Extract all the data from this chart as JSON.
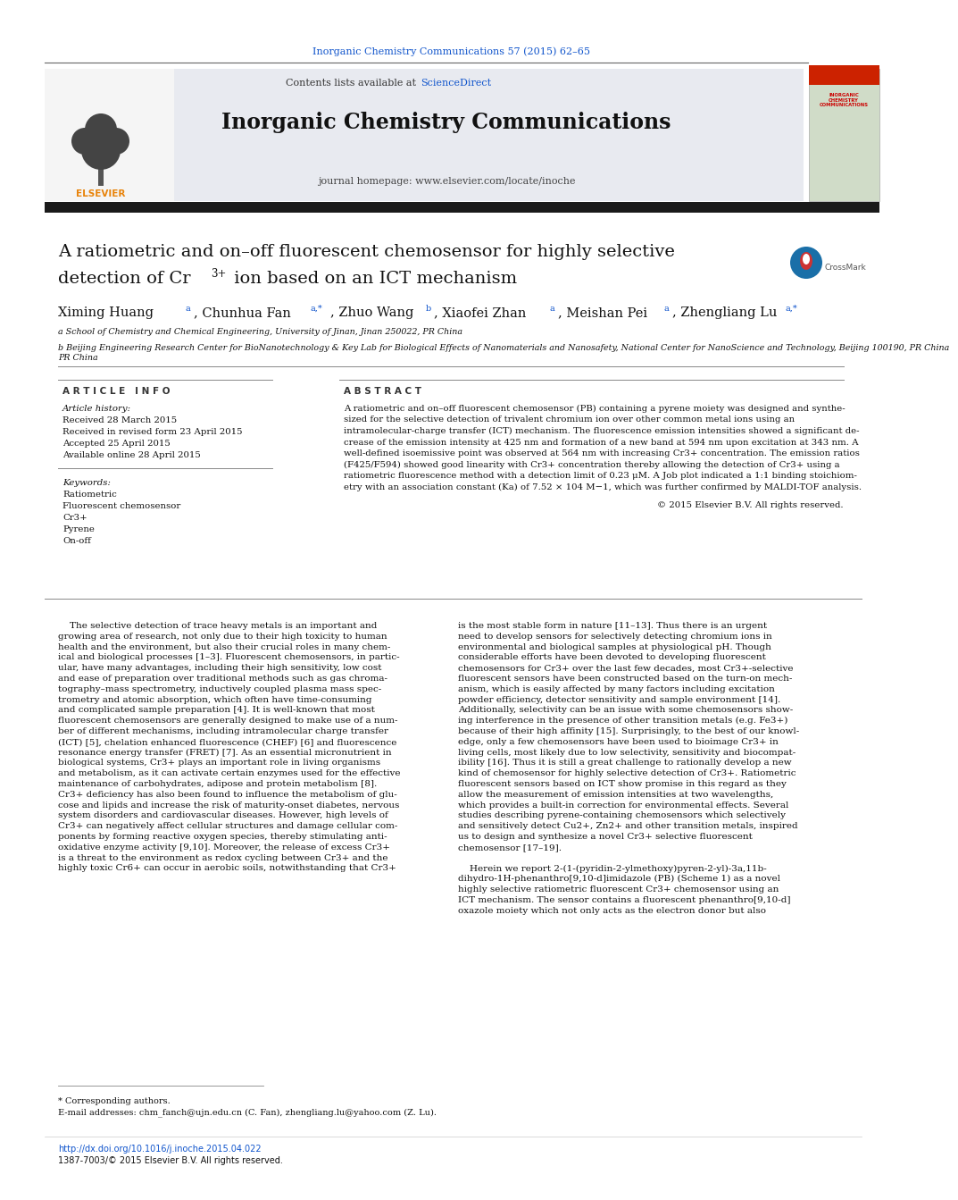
{
  "page_bg": "#ffffff",
  "top_citation": "Inorganic Chemistry Communications 57 (2015) 62–65",
  "top_citation_color": "#1155cc",
  "journal_name": "Inorganic Chemistry Communications",
  "contents_line": "Contents lists available at ScienceDirect",
  "sciencedirect_color": "#1155cc",
  "journal_homepage": "journal homepage: www.elsevier.com/locate/inoche",
  "header_bg": "#e8eaf0",
  "thick_bar_color": "#1a1a1a",
  "title_line1": "A ratiometric and on–off fluorescent chemosensor for highly selective",
  "title_line2a": "detection of Cr",
  "title_superscript": "3+",
  "title_line2b": " ion based on an ICT mechanism",
  "article_info_header": "A R T I C L E   I N F O",
  "abstract_header": "A B S T R A C T",
  "article_history_label": "Article history:",
  "received": "Received 28 March 2015",
  "revised": "Received in revised form 23 April 2015",
  "accepted": "Accepted 25 April 2015",
  "available": "Available online 28 April 2015",
  "keywords_label": "Keywords:",
  "keywords": [
    "Ratiometric",
    "Fluorescent chemosensor",
    "Cr3+",
    "Pyrene",
    "On-off"
  ],
  "abstract_text": "A ratiometric and on–off fluorescent chemosensor (PB) containing a pyrene moiety was designed and synthesized for the selective detection of trivalent chromium ion over other common metal ions using an intramolecular-charge transfer (ICT) mechanism. The fluorescence emission intensities showed a significant decrease of the emission intensity at 425 nm and formation of a new band at 594 nm upon excitation at 343 nm. A well-defined isoemissive point was observed at 564 nm with increasing Cr3+ concentration. The emission ratios (F425/F594) showed good linearity with Cr3+ concentration thereby allowing the detection of Cr3+ using a ratiometric fluorescence method with a detection limit of 0.23 μM. A Job plot indicated a 1:1 binding stoichiometry with an association constant (Ka) of 7.52 × 104 M−1, which was further confirmed by MALDI-TOF analysis.",
  "copyright": "© 2015 Elsevier B.V. All rights reserved.",
  "affil_a": "a School of Chemistry and Chemical Engineering, University of Jinan, Jinan 250022, PR China",
  "affil_b": "b Beijing Engineering Research Center for BioNanotechnology & Key Lab for Biological Effects of Nanomaterials and Nanosafety, National Center for NanoScience and Technology, Beijing 100190, PR China",
  "body_col1_lines": [
    "    The selective detection of trace heavy metals is an important and",
    "growing area of research, not only due to their high toxicity to human",
    "health and the environment, but also their crucial roles in many chem-",
    "ical and biological processes [1–3]. Fluorescent chemosensors, in partic-",
    "ular, have many advantages, including their high sensitivity, low cost",
    "and ease of preparation over traditional methods such as gas chroma-",
    "tography–mass spectrometry, inductively coupled plasma mass spec-",
    "trometry and atomic absorption, which often have time-consuming",
    "and complicated sample preparation [4]. It is well-known that most",
    "fluorescent chemosensors are generally designed to make use of a num-",
    "ber of different mechanisms, including intramolecular charge transfer",
    "(ICT) [5], chelation enhanced fluorescence (CHEF) [6] and fluorescence",
    "resonance energy transfer (FRET) [7]. As an essential micronutrient in",
    "biological systems, Cr3+ plays an important role in living organisms",
    "and metabolism, as it can activate certain enzymes used for the effective",
    "maintenance of carbohydrates, adipose and protein metabolism [8].",
    "Cr3+ deficiency has also been found to influence the metabolism of glu-",
    "cose and lipids and increase the risk of maturity-onset diabetes, nervous",
    "system disorders and cardiovascular diseases. However, high levels of",
    "Cr3+ can negatively affect cellular structures and damage cellular com-",
    "ponents by forming reactive oxygen species, thereby stimulating anti-",
    "oxidative enzyme activity [9,10]. Moreover, the release of excess Cr3+",
    "is a threat to the environment as redox cycling between Cr3+ and the",
    "highly toxic Cr6+ can occur in aerobic soils, notwithstanding that Cr3+"
  ],
  "body_col2_lines": [
    "is the most stable form in nature [11–13]. Thus there is an urgent",
    "need to develop sensors for selectively detecting chromium ions in",
    "environmental and biological samples at physiological pH. Though",
    "considerable efforts have been devoted to developing fluorescent",
    "chemosensors for Cr3+ over the last few decades, most Cr3+-selective",
    "fluorescent sensors have been constructed based on the turn-on mech-",
    "anism, which is easily affected by many factors including excitation",
    "powder efficiency, detector sensitivity and sample environment [14].",
    "Additionally, selectivity can be an issue with some chemosensors show-",
    "ing interference in the presence of other transition metals (e.g. Fe3+)",
    "because of their high affinity [15]. Surprisingly, to the best of our knowl-",
    "edge, only a few chemosensors have been used to bioimage Cr3+ in",
    "living cells, most likely due to low selectivity, sensitivity and biocompat-",
    "ibility [16]. Thus it is still a great challenge to rationally develop a new",
    "kind of chemosensor for highly selective detection of Cr3+. Ratiometric",
    "fluorescent sensors based on ICT show promise in this regard as they",
    "allow the measurement of emission intensities at two wavelengths,",
    "which provides a built-in correction for environmental effects. Several",
    "studies describing pyrene-containing chemosensors which selectively",
    "and sensitively detect Cu2+, Zn2+ and other transition metals, inspired",
    "us to design and synthesize a novel Cr3+ selective fluorescent",
    "chemosensor [17–19].",
    "",
    "    Herein we report 2-(1-(pyridin-2-ylmethoxy)pyren-2-yl)-3a,11b-",
    "dihydro-1H-phenanthro[9,10-d]imidazole (PB) (Scheme 1) as a novel",
    "highly selective ratiometric fluorescent Cr3+ chemosensor using an",
    "ICT mechanism. The sensor contains a fluorescent phenanthro[9,10-d]",
    "oxazole moiety which not only acts as the electron donor but also"
  ],
  "footnote_star": "* Corresponding authors.",
  "footnote_email": "E-mail addresses: chm_fanch@ujn.edu.cn (C. Fan), zhengliang.lu@yahoo.com (Z. Lu).",
  "doi": "http://dx.doi.org/10.1016/j.inoche.2015.04.022",
  "issn": "1387-7003/© 2015 Elsevier B.V. All rights reserved."
}
